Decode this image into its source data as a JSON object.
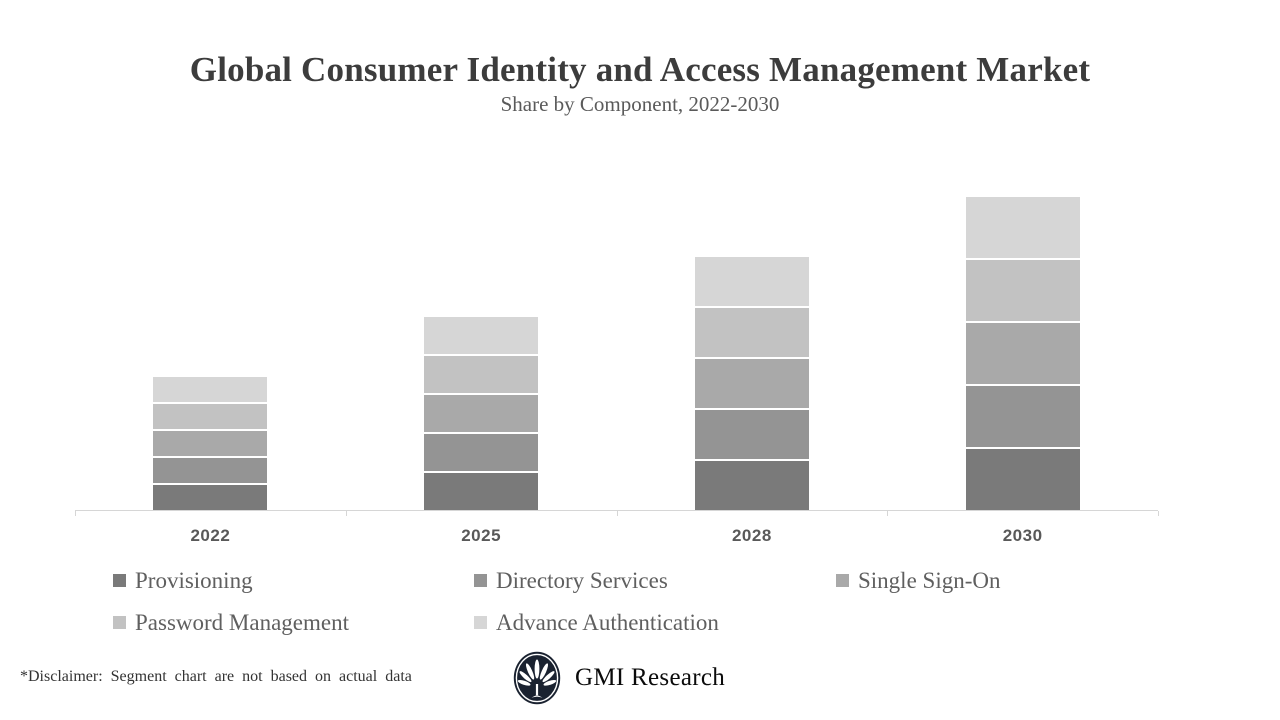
{
  "header": {
    "title": "Global Consumer Identity and Access Management Market",
    "subtitle": "Share by Component, 2022-2030"
  },
  "chart_data": {
    "type": "bar",
    "stacked": true,
    "title": "Global Consumer Identity and Access Management Market",
    "subtitle": "Share by Component, 2022-2030",
    "xlabel": "",
    "ylabel": "",
    "categories": [
      "2022",
      "2025",
      "2028",
      "2030"
    ],
    "series": [
      {
        "name": "Provisioning",
        "color": "#7a7a7a",
        "values": [
          25,
          37,
          49,
          61
        ]
      },
      {
        "name": "Directory Services",
        "color": "#949494",
        "values": [
          25,
          37,
          49,
          61
        ]
      },
      {
        "name": "Single Sign-On",
        "color": "#a9a9a9",
        "values": [
          25,
          37,
          49,
          61
        ]
      },
      {
        "name": "Password Management",
        "color": "#c2c2c2",
        "values": [
          25,
          37,
          49,
          61
        ]
      },
      {
        "name": "Advance Authentication",
        "color": "#d6d6d6",
        "values": [
          25,
          37,
          49,
          61
        ]
      }
    ],
    "totals": [
      125,
      185,
      245,
      305
    ],
    "ylim": [
      0,
      320
    ],
    "y_axis_visible": false,
    "grid": false,
    "legend_position": "bottom",
    "axis_color": "#d6d6d6",
    "category_label_color": "#595959"
  },
  "legend": {
    "items": [
      {
        "label": "Provisioning",
        "color": "#7a7a7a"
      },
      {
        "label": "Directory Services",
        "color": "#949494"
      },
      {
        "label": "Single Sign-On",
        "color": "#a9a9a9"
      },
      {
        "label": "Password Management",
        "color": "#c2c2c2"
      },
      {
        "label": "Advance Authentication",
        "color": "#d6d6d6"
      }
    ]
  },
  "footer": {
    "disclaimer": "*Disclaimer:  Segment chart are not based on actual data",
    "brand": "GMI Research",
    "logo": "gmi-fan-logo",
    "logo_color": "#1a2230"
  }
}
